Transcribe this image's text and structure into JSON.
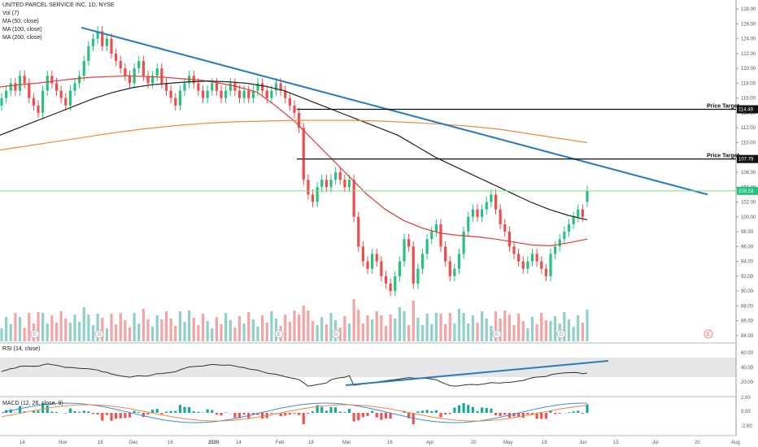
{
  "legend": {
    "symbol": "UNITED PARCEL SERVICE INC, 1D, NYSE",
    "vol": "Vol (7)",
    "ma50": "MA (50, close)",
    "ma100": "MA (100, close)",
    "ma200": "MA (200, close)"
  },
  "rsi_label": "RSI (14, close)",
  "macd_label": "MACD (12, 26, close, 9)",
  "colors": {
    "up": "#26c281",
    "down": "#ef4d4d",
    "vol_up": "#8fd0c8",
    "vol_down": "#f5a3a3",
    "ma50": "#e23b3b",
    "ma100": "#222222",
    "ma200": "#f0883e",
    "trend": "#2a7bbf",
    "rsi_band": "#e7e7ea",
    "macd_line": "#3b8fd4",
    "signal_line": "#f0883e"
  },
  "price_axis": {
    "min": 83,
    "max": 129,
    "ticks": [
      84,
      86,
      88,
      90,
      92,
      94,
      96,
      98,
      100,
      102,
      104,
      106,
      108,
      110,
      112,
      114,
      116,
      118,
      120,
      122,
      124,
      126,
      128
    ]
  },
  "time_axis": [
    "14",
    "Nov",
    "18",
    "Dec",
    "16",
    "2020",
    "14",
    "Feb",
    "18",
    "Mar",
    "16",
    "Apr",
    "20",
    "May",
    "18",
    "Jun",
    "15",
    "Jul",
    "20",
    "Aug"
  ],
  "price_targets": [
    {
      "label": "Price Target",
      "value": "114.49"
    },
    {
      "label": "Price Target",
      "value": "107.79"
    }
  ],
  "current_price": "103.53",
  "events": [
    "E",
    "D",
    "E",
    "D",
    "E",
    "D",
    "E"
  ],
  "rsi_axis": [
    "60.00",
    "40.00",
    "20.00"
  ],
  "macd_axis": [
    "2.00",
    "0.00",
    "-2.00"
  ],
  "chart_data": {
    "type": "candlestick",
    "series": [
      {
        "name": "UNITED PARCEL SERVICE INC",
        "kind": "candles",
        "close": [
          116,
          117,
          118,
          117,
          119,
          118,
          116,
          115,
          114,
          117,
          119,
          118,
          117,
          116,
          115,
          117,
          118,
          119,
          121,
          123,
          124,
          125,
          123,
          124,
          122,
          121,
          120,
          119,
          118,
          120,
          121,
          119,
          118,
          119,
          120,
          118,
          117,
          116,
          115,
          117,
          118,
          119,
          118,
          117,
          116,
          117,
          118,
          117,
          116,
          117,
          118,
          117,
          116,
          117,
          116,
          117,
          118,
          117,
          116,
          117,
          118,
          117,
          116,
          115,
          114,
          112,
          105,
          103,
          102,
          104,
          105,
          104,
          105,
          106,
          105,
          104,
          105,
          100,
          96,
          94,
          93,
          95,
          94,
          92,
          91,
          90,
          92,
          94,
          97,
          96,
          91,
          93,
          95,
          97,
          98,
          99,
          96,
          94,
          92,
          93,
          95,
          98,
          100,
          101,
          100,
          101,
          102,
          103,
          101,
          99,
          98,
          96,
          95,
          94,
          93,
          94,
          95,
          94,
          93,
          92,
          95,
          96,
          97,
          98,
          99,
          100,
          101,
          100,
          103.5
        ],
        "open": [
          115,
          116,
          117,
          118,
          117,
          119,
          118,
          116,
          115,
          114,
          117,
          119,
          118,
          117,
          116,
          115,
          117,
          118,
          119,
          121,
          123,
          124,
          125,
          123,
          124,
          122,
          121,
          120,
          119,
          118,
          120,
          121,
          119,
          118,
          119,
          120,
          118,
          117,
          116,
          115,
          117,
          118,
          119,
          118,
          117,
          116,
          117,
          118,
          117,
          116,
          117,
          118,
          117,
          116,
          117,
          116,
          117,
          118,
          117,
          116,
          117,
          118,
          117,
          116,
          115,
          114,
          112,
          105,
          103,
          102,
          104,
          105,
          104,
          105,
          106,
          105,
          104,
          105,
          100,
          96,
          94,
          93,
          95,
          94,
          92,
          91,
          90,
          92,
          94,
          97,
          96,
          91,
          93,
          95,
          97,
          98,
          99,
          96,
          94,
          92,
          93,
          95,
          98,
          100,
          101,
          100,
          101,
          102,
          103,
          101,
          99,
          98,
          96,
          95,
          94,
          93,
          94,
          95,
          94,
          93,
          92,
          95,
          96,
          97,
          98,
          99,
          100,
          101,
          102
        ]
      },
      {
        "name": "MA (50, close)",
        "kind": "line",
        "values": [
          117.5,
          117.8,
          118,
          118.3,
          118.6,
          118.8,
          118.9,
          119,
          118.9,
          118.8,
          118.6,
          118.4,
          118,
          117.5,
          116.8,
          115,
          113,
          110.5,
          108,
          105.5,
          103,
          101,
          99.5,
          98.5,
          97.8,
          97.5,
          97.3,
          97,
          96.6,
          96.2,
          96.1,
          96.5,
          97
        ]
      },
      {
        "name": "MA (100, close)",
        "kind": "line",
        "values": [
          111,
          112,
          113,
          114,
          115,
          116,
          116.8,
          117.4,
          117.8,
          118,
          118.2,
          118.3,
          118.2,
          118,
          117.6,
          117,
          116,
          115,
          114,
          113,
          112,
          111,
          109.5,
          108,
          106.8,
          105.6,
          104.4,
          103.2,
          102,
          101,
          100.2,
          99.6
        ]
      },
      {
        "name": "MA (200, close)",
        "kind": "line",
        "values": [
          109,
          109.6,
          110.2,
          110.8,
          111.4,
          111.9,
          112.3,
          112.6,
          112.8,
          112.9,
          113,
          113,
          113,
          112.9,
          112.7,
          112.5,
          112.2,
          111.8,
          111.2,
          110.6,
          110
        ]
      },
      {
        "name": "Volume",
        "kind": "bars"
      },
      {
        "name": "RSI (14, close)",
        "kind": "line"
      },
      {
        "name": "MACD (12, 26, close, 9)",
        "kind": "histogram+lines"
      }
    ]
  }
}
